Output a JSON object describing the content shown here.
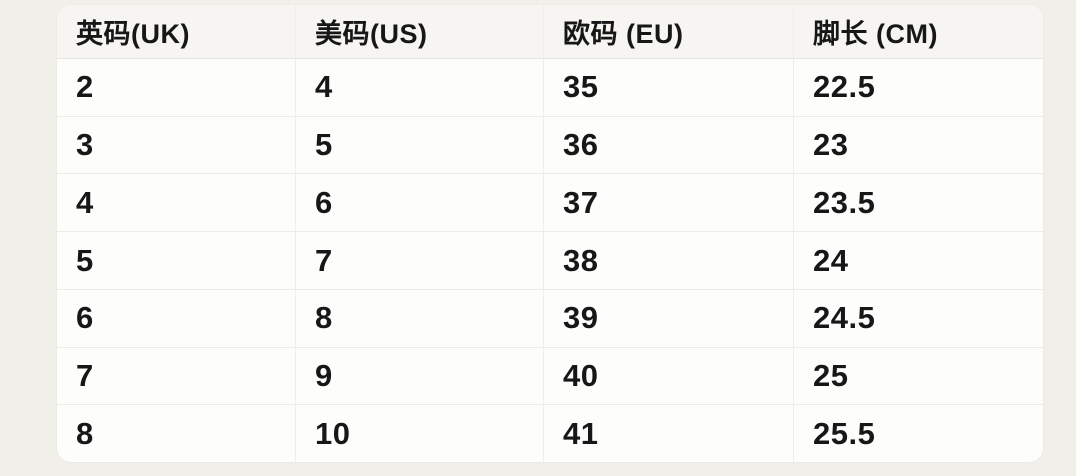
{
  "colors": {
    "page_background": "#f1efe9",
    "table_background": "#fdfdfb",
    "header_background": "#f6f5f1",
    "divider": "#ebeae6",
    "text": "#171717"
  },
  "table": {
    "headers": [
      {
        "label": "英码(UK)"
      },
      {
        "label": "美码(US)"
      },
      {
        "label": "欧码 (EU)"
      },
      {
        "label": "脚长 (CM)"
      }
    ],
    "rows": [
      {
        "uk": "2",
        "us": "4",
        "eu": "35",
        "cm": "22.5"
      },
      {
        "uk": "3",
        "us": "5",
        "eu": "36",
        "cm": "23"
      },
      {
        "uk": "4",
        "us": "6",
        "eu": "37",
        "cm": "23.5"
      },
      {
        "uk": "5",
        "us": "7",
        "eu": "38",
        "cm": "24"
      },
      {
        "uk": "6",
        "us": "8",
        "eu": "39",
        "cm": "24.5"
      },
      {
        "uk": "7",
        "us": "9",
        "eu": "40",
        "cm": "25"
      },
      {
        "uk": "8",
        "us": "10",
        "eu": "41",
        "cm": "25.5"
      }
    ]
  },
  "chart_data": {
    "type": "table",
    "title": "",
    "columns": [
      "英码(UK)",
      "美码(US)",
      "欧码 (EU)",
      "脚长 (CM)"
    ],
    "rows": [
      [
        "2",
        "4",
        "35",
        "22.5"
      ],
      [
        "3",
        "5",
        "36",
        "23"
      ],
      [
        "4",
        "6",
        "37",
        "23.5"
      ],
      [
        "5",
        "7",
        "38",
        "24"
      ],
      [
        "6",
        "8",
        "39",
        "24.5"
      ],
      [
        "7",
        "9",
        "40",
        "25"
      ],
      [
        "8",
        "10",
        "41",
        "25.5"
      ]
    ]
  }
}
